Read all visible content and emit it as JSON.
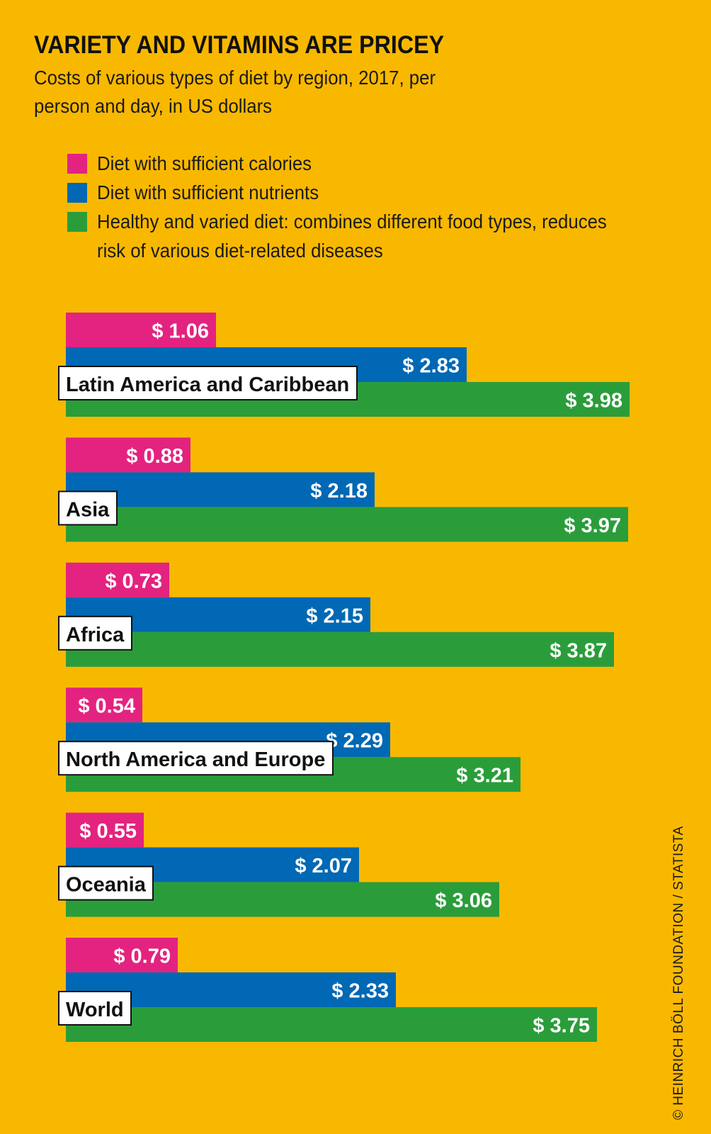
{
  "chart_data": {
    "type": "bar",
    "orientation": "horizontal",
    "title": "VARIETY AND VITAMINS ARE PRICEY",
    "subtitle": "Costs of various types of diet by region, 2017, per person and day, in US dollars",
    "categories": [
      "Latin America and Caribbean",
      "Asia",
      "Africa",
      "North America and Europe",
      "Oceania",
      "World"
    ],
    "series": [
      {
        "name": "Diet with sufficient calories",
        "color": "#e3237f",
        "values": [
          1.06,
          0.88,
          0.73,
          0.54,
          0.55,
          0.79
        ]
      },
      {
        "name": "Diet with sufficient nutrients",
        "color": "#0068b4",
        "values": [
          2.83,
          2.18,
          2.15,
          2.29,
          2.07,
          2.33
        ]
      },
      {
        "name": "Healthy and varied diet: combines different food types, reduces risk of various diet-related diseases",
        "color": "#2a9d3a",
        "values": [
          3.98,
          3.97,
          3.87,
          3.21,
          3.06,
          3.75
        ]
      }
    ],
    "value_prefix": "$ ",
    "xlim": [
      0,
      4.0
    ],
    "grid": false,
    "legend_position": "top-left",
    "credit": "© HEINRICH BÖLL FOUNDATION / STATISTA"
  }
}
